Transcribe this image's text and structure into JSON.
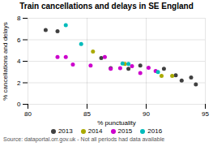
{
  "chart_data": {
    "type": "scatter",
    "title": "Train cancellations and delays in SE England",
    "xlabel": "% punctuality",
    "ylabel": "% cancellations and delays",
    "source": "Source: dataportal.orr.gov.uk - Not all periods had data available",
    "xlim": [
      80,
      95
    ],
    "ylim": [
      0,
      8
    ],
    "xticks": [
      80,
      85,
      90,
      95
    ],
    "yticks": [
      0,
      2,
      4,
      6,
      8
    ],
    "grid": true,
    "legend": "bottom",
    "series": [
      {
        "name": "2013",
        "color": "#404040",
        "x": [
          81.5,
          82.5,
          86.2,
          87.0,
          88.5,
          89.5,
          91.5,
          92.5,
          93.0,
          93.8,
          94.2
        ],
        "values": [
          6.9,
          6.8,
          4.3,
          3.35,
          3.3,
          3.6,
          3.3,
          2.7,
          2.2,
          2.5,
          1.85
        ]
      },
      {
        "name": "2014",
        "color": "#aaaa00",
        "x": [
          85.5,
          88.2,
          91.3,
          92.2
        ],
        "values": [
          4.9,
          3.75,
          2.65,
          2.65
        ]
      },
      {
        "name": "2015",
        "color": "#cc00cc",
        "x": [
          82.5,
          83.2,
          83.8,
          85.3,
          86.5,
          87.0,
          87.8,
          88.8,
          89.5,
          90.2,
          90.8
        ],
        "values": [
          4.4,
          4.4,
          3.7,
          3.6,
          4.4,
          3.3,
          3.35,
          3.55,
          2.9,
          3.4,
          3.1
        ]
      },
      {
        "name": "2016",
        "color": "#00bbbb",
        "x": [
          83.2,
          84.5,
          88.0,
          88.5,
          91.0
        ],
        "values": [
          7.35,
          5.6,
          3.8,
          3.75,
          3.0
        ]
      }
    ]
  }
}
